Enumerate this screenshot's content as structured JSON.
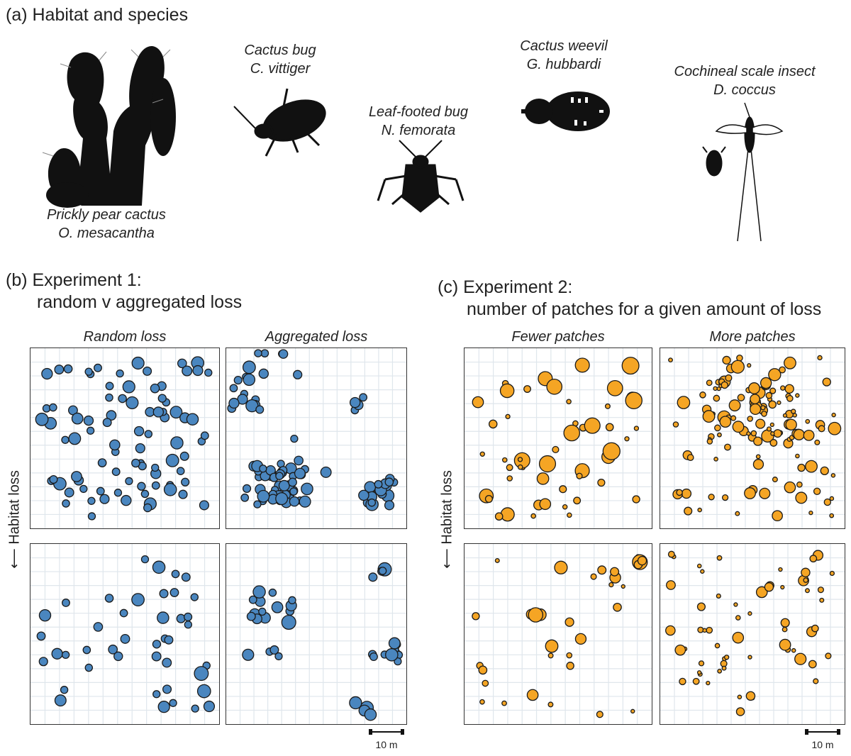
{
  "section_a": {
    "header": "(a) Habitat and species",
    "species": [
      {
        "common": "Prickly pear cactus",
        "latin": "O. mesacantha",
        "icon": "cactus-icon"
      },
      {
        "common": "Cactus bug",
        "latin": "C. vittiger",
        "icon": "cactus-bug-icon"
      },
      {
        "common": "Leaf-footed bug",
        "latin": "N. femorata",
        "icon": "leaf-footed-bug-icon"
      },
      {
        "common": "Cactus weevil",
        "latin": "G. hubbardi",
        "icon": "weevil-icon"
      },
      {
        "common": "Cochineal scale insect",
        "latin": "D. coccus",
        "icon": "cochineal-icon"
      }
    ]
  },
  "section_b": {
    "header_line1": "(b) Experiment 1:",
    "header_line2": "random v aggregated loss",
    "col_titles": [
      "Random loss",
      "Aggregated loss"
    ],
    "axis_label": "Habitat loss",
    "scale_label": "10 m",
    "color": "#4a86bf"
  },
  "section_c": {
    "header_line1": "(c) Experiment 2:",
    "header_line2": "number of patches for a given amount of loss",
    "col_titles": [
      "Fewer patches",
      "More patches"
    ],
    "axis_label": "Habitat loss",
    "scale_label": "10 m",
    "color": "#f5a524"
  }
}
